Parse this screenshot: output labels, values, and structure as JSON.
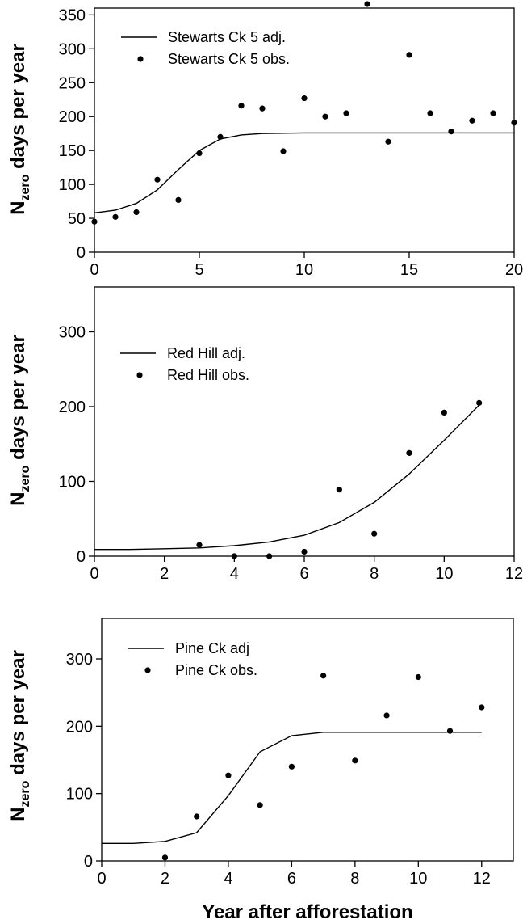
{
  "chart_data": [
    {
      "type": "line",
      "ylabel_main": "N",
      "ylabel_sub": "zero",
      "ylabel_rest": " days per year",
      "xlim": [
        0,
        20
      ],
      "ylim": [
        0,
        360
      ],
      "xticks": [
        0,
        5,
        10,
        15,
        20
      ],
      "yticks": [
        0,
        50,
        100,
        150,
        200,
        250,
        300,
        350
      ],
      "legend": [
        "Stewarts Ck 5 adj.",
        "Stewarts Ck 5 obs."
      ],
      "legend_position": "top-left",
      "fit": {
        "x": [
          0,
          1,
          2,
          3,
          4,
          5,
          6,
          7,
          8,
          10,
          12,
          14,
          16,
          18,
          20
        ],
        "y": [
          58,
          62,
          72,
          92,
          122,
          150,
          167,
          173,
          175,
          176,
          176,
          176,
          176,
          176,
          176
        ]
      },
      "observed": {
        "x": [
          0,
          1,
          2,
          3,
          4,
          5,
          6,
          7,
          8,
          9,
          10,
          11,
          12,
          13,
          14,
          15,
          16,
          17,
          18,
          19,
          20
        ],
        "y": [
          45,
          52,
          59,
          107,
          77,
          146,
          170,
          216,
          212,
          149,
          227,
          200,
          205,
          366,
          163,
          291,
          205,
          178,
          194,
          205,
          191
        ]
      }
    },
    {
      "type": "line",
      "ylabel_main": "N",
      "ylabel_sub": "zero",
      "ylabel_rest": " days per year",
      "xlim": [
        0,
        12
      ],
      "ylim": [
        0,
        360
      ],
      "xticks": [
        0,
        2,
        4,
        6,
        8,
        10,
        12
      ],
      "yticks": [
        0,
        100,
        200,
        300
      ],
      "legend": [
        "Red Hill adj.",
        "Red Hill obs."
      ],
      "legend_position": "top-left",
      "fit": {
        "x": [
          0,
          1,
          2,
          3,
          4,
          5,
          6,
          7,
          8,
          9,
          10,
          11
        ],
        "y": [
          9,
          9,
          10,
          11,
          14,
          19,
          28,
          45,
          72,
          110,
          155,
          202
        ]
      },
      "observed": {
        "x": [
          3,
          4,
          5,
          6,
          7,
          8,
          9,
          10,
          11
        ],
        "y": [
          15,
          0,
          0,
          6,
          89,
          30,
          138,
          192,
          205
        ]
      }
    },
    {
      "type": "line",
      "ylabel_main": "N",
      "ylabel_sub": "zero",
      "ylabel_rest": " days per year",
      "xlabel": "Year after afforestation",
      "xlim": [
        0,
        13
      ],
      "ylim": [
        0,
        360
      ],
      "xticks": [
        0,
        2,
        4,
        6,
        8,
        10,
        12
      ],
      "yticks": [
        0,
        100,
        200,
        300
      ],
      "legend": [
        "Pine Ck adj",
        "Pine Ck obs."
      ],
      "legend_position": "top-left",
      "fit": {
        "x": [
          0,
          1,
          2,
          3,
          4,
          5,
          6,
          7,
          8,
          9,
          10,
          11,
          12
        ],
        "y": [
          26,
          26,
          29,
          42,
          97,
          162,
          186,
          191,
          191,
          191,
          191,
          191,
          191
        ]
      },
      "observed": {
        "x": [
          2,
          3,
          4,
          5,
          6,
          7,
          8,
          9,
          10,
          11,
          12
        ],
        "y": [
          5,
          66,
          127,
          83,
          140,
          275,
          149,
          216,
          273,
          193,
          228
        ]
      }
    }
  ]
}
